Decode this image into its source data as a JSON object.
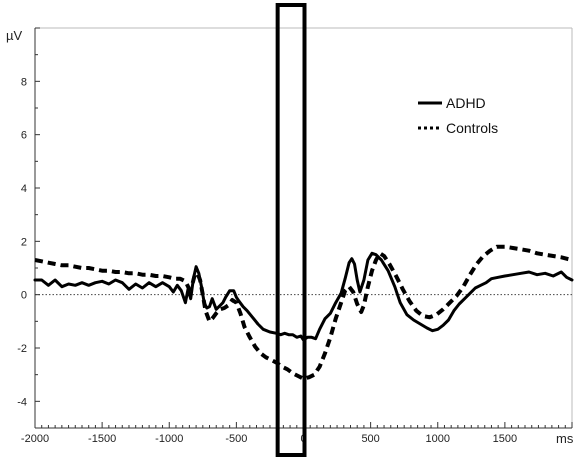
{
  "chart_data": {
    "type": "line",
    "y_unit": "µV",
    "x_unit": "ms",
    "xlim": [
      -2000,
      2000
    ],
    "ylim": [
      -5,
      10
    ],
    "x_tick_labels": [
      "-2000",
      "-1500",
      "-1000",
      "-500",
      "0",
      "500",
      "1000",
      "1500"
    ],
    "x_tick_values": [
      -2000,
      -1500,
      -1000,
      -500,
      0,
      500,
      1000,
      1500
    ],
    "y_tick_labels": [
      "8",
      "6",
      "4",
      "2",
      "0",
      "-2",
      "-4"
    ],
    "y_tick_values": [
      8,
      6,
      4,
      2,
      0,
      -2,
      -4
    ],
    "zero_line": "dotted",
    "highlight_window": [
      -200,
      0
    ],
    "legend": {
      "placement": "top-right"
    },
    "series": [
      {
        "name": "ADHD",
        "style": "solid",
        "color": "#000000",
        "points": [
          [
            -2000,
            0.55
          ],
          [
            -1950,
            0.55
          ],
          [
            -1900,
            0.35
          ],
          [
            -1850,
            0.55
          ],
          [
            -1800,
            0.3
          ],
          [
            -1750,
            0.4
          ],
          [
            -1700,
            0.35
          ],
          [
            -1650,
            0.45
          ],
          [
            -1600,
            0.35
          ],
          [
            -1550,
            0.45
          ],
          [
            -1500,
            0.5
          ],
          [
            -1450,
            0.4
          ],
          [
            -1400,
            0.55
          ],
          [
            -1350,
            0.45
          ],
          [
            -1300,
            0.2
          ],
          [
            -1250,
            0.4
          ],
          [
            -1200,
            0.25
          ],
          [
            -1150,
            0.45
          ],
          [
            -1100,
            0.3
          ],
          [
            -1050,
            0.45
          ],
          [
            -1000,
            0.3
          ],
          [
            -970,
            0.1
          ],
          [
            -940,
            0.35
          ],
          [
            -910,
            0.15
          ],
          [
            -880,
            -0.3
          ],
          [
            -860,
            0.2
          ],
          [
            -840,
            -0.15
          ],
          [
            -820,
            0.6
          ],
          [
            -800,
            1.05
          ],
          [
            -780,
            0.8
          ],
          [
            -760,
            0.3
          ],
          [
            -740,
            -0.3
          ],
          [
            -720,
            -0.5
          ],
          [
            -700,
            -0.45
          ],
          [
            -680,
            -0.15
          ],
          [
            -650,
            -0.55
          ],
          [
            -620,
            -0.4
          ],
          [
            -600,
            -0.3
          ],
          [
            -580,
            -0.1
          ],
          [
            -550,
            0.15
          ],
          [
            -520,
            0.15
          ],
          [
            -500,
            -0.1
          ],
          [
            -480,
            -0.25
          ],
          [
            -450,
            -0.45
          ],
          [
            -420,
            -0.6
          ],
          [
            -380,
            -0.85
          ],
          [
            -340,
            -1.1
          ],
          [
            -300,
            -1.3
          ],
          [
            -250,
            -1.4
          ],
          [
            -200,
            -1.45
          ],
          [
            -170,
            -1.5
          ],
          [
            -140,
            -1.45
          ],
          [
            -110,
            -1.5
          ],
          [
            -80,
            -1.5
          ],
          [
            -50,
            -1.6
          ],
          [
            -20,
            -1.55
          ],
          [
            0,
            -1.7
          ],
          [
            30,
            -1.6
          ],
          [
            60,
            -1.6
          ],
          [
            90,
            -1.65
          ],
          [
            120,
            -1.3
          ],
          [
            160,
            -0.9
          ],
          [
            200,
            -0.7
          ],
          [
            240,
            -0.3
          ],
          [
            280,
            0.05
          ],
          [
            310,
            0.6
          ],
          [
            340,
            1.2
          ],
          [
            360,
            1.35
          ],
          [
            380,
            1.15
          ],
          [
            400,
            0.55
          ],
          [
            420,
            0.1
          ],
          [
            450,
            0.55
          ],
          [
            480,
            1.3
          ],
          [
            510,
            1.55
          ],
          [
            540,
            1.5
          ],
          [
            580,
            1.3
          ],
          [
            630,
            0.9
          ],
          [
            680,
            0.3
          ],
          [
            720,
            -0.3
          ],
          [
            770,
            -0.75
          ],
          [
            820,
            -0.95
          ],
          [
            870,
            -1.1
          ],
          [
            920,
            -1.25
          ],
          [
            960,
            -1.35
          ],
          [
            1000,
            -1.3
          ],
          [
            1040,
            -1.15
          ],
          [
            1080,
            -0.95
          ],
          [
            1120,
            -0.6
          ],
          [
            1160,
            -0.35
          ],
          [
            1200,
            -0.15
          ],
          [
            1240,
            0.05
          ],
          [
            1280,
            0.25
          ],
          [
            1320,
            0.35
          ],
          [
            1360,
            0.45
          ],
          [
            1400,
            0.6
          ],
          [
            1450,
            0.65
          ],
          [
            1500,
            0.7
          ],
          [
            1560,
            0.75
          ],
          [
            1620,
            0.8
          ],
          [
            1680,
            0.85
          ],
          [
            1740,
            0.75
          ],
          [
            1800,
            0.8
          ],
          [
            1860,
            0.7
          ],
          [
            1920,
            0.85
          ],
          [
            1960,
            0.65
          ],
          [
            2000,
            0.55
          ]
        ]
      },
      {
        "name": "Controls",
        "style": "dashed",
        "color": "#000000",
        "points": [
          [
            -2000,
            1.3
          ],
          [
            -1950,
            1.25
          ],
          [
            -1900,
            1.2
          ],
          [
            -1850,
            1.15
          ],
          [
            -1800,
            1.1
          ],
          [
            -1750,
            1.1
          ],
          [
            -1700,
            1.05
          ],
          [
            -1650,
            1.0
          ],
          [
            -1600,
            1.0
          ],
          [
            -1550,
            0.95
          ],
          [
            -1500,
            0.9
          ],
          [
            -1450,
            0.9
          ],
          [
            -1400,
            0.85
          ],
          [
            -1350,
            0.85
          ],
          [
            -1300,
            0.8
          ],
          [
            -1250,
            0.8
          ],
          [
            -1200,
            0.75
          ],
          [
            -1150,
            0.75
          ],
          [
            -1100,
            0.7
          ],
          [
            -1050,
            0.7
          ],
          [
            -1000,
            0.65
          ],
          [
            -960,
            0.6
          ],
          [
            -920,
            0.6
          ],
          [
            -880,
            0.5
          ],
          [
            -850,
            0.2
          ],
          [
            -830,
            0.35
          ],
          [
            -810,
            0.75
          ],
          [
            -790,
            0.8
          ],
          [
            -770,
            0.55
          ],
          [
            -750,
            0.0
          ],
          [
            -730,
            -0.6
          ],
          [
            -700,
            -1.0
          ],
          [
            -680,
            -0.9
          ],
          [
            -650,
            -0.7
          ],
          [
            -620,
            -0.55
          ],
          [
            -590,
            -0.5
          ],
          [
            -560,
            -0.4
          ],
          [
            -530,
            -0.2
          ],
          [
            -500,
            -0.3
          ],
          [
            -470,
            -0.7
          ],
          [
            -440,
            -1.2
          ],
          [
            -400,
            -1.6
          ],
          [
            -360,
            -1.95
          ],
          [
            -320,
            -2.2
          ],
          [
            -280,
            -2.35
          ],
          [
            -240,
            -2.45
          ],
          [
            -200,
            -2.55
          ],
          [
            -160,
            -2.7
          ],
          [
            -120,
            -2.8
          ],
          [
            -80,
            -2.95
          ],
          [
            -40,
            -3.05
          ],
          [
            0,
            -3.15
          ],
          [
            40,
            -3.1
          ],
          [
            80,
            -3.0
          ],
          [
            120,
            -2.7
          ],
          [
            160,
            -2.2
          ],
          [
            200,
            -1.6
          ],
          [
            240,
            -0.9
          ],
          [
            280,
            -0.3
          ],
          [
            310,
            0.15
          ],
          [
            340,
            0.3
          ],
          [
            370,
            0.1
          ],
          [
            400,
            -0.35
          ],
          [
            430,
            -0.65
          ],
          [
            450,
            -0.4
          ],
          [
            480,
            0.3
          ],
          [
            510,
            0.9
          ],
          [
            540,
            1.3
          ],
          [
            570,
            1.55
          ],
          [
            600,
            1.45
          ],
          [
            640,
            1.15
          ],
          [
            690,
            0.7
          ],
          [
            740,
            0.2
          ],
          [
            790,
            -0.25
          ],
          [
            840,
            -0.6
          ],
          [
            890,
            -0.8
          ],
          [
            940,
            -0.85
          ],
          [
            990,
            -0.75
          ],
          [
            1040,
            -0.55
          ],
          [
            1090,
            -0.3
          ],
          [
            1140,
            -0.05
          ],
          [
            1190,
            0.3
          ],
          [
            1240,
            0.75
          ],
          [
            1290,
            1.15
          ],
          [
            1340,
            1.45
          ],
          [
            1390,
            1.65
          ],
          [
            1440,
            1.8
          ],
          [
            1500,
            1.8
          ],
          [
            1560,
            1.75
          ],
          [
            1620,
            1.7
          ],
          [
            1680,
            1.65
          ],
          [
            1740,
            1.55
          ],
          [
            1800,
            1.5
          ],
          [
            1860,
            1.45
          ],
          [
            1920,
            1.4
          ],
          [
            1960,
            1.35
          ],
          [
            2000,
            1.3
          ]
        ]
      }
    ]
  }
}
